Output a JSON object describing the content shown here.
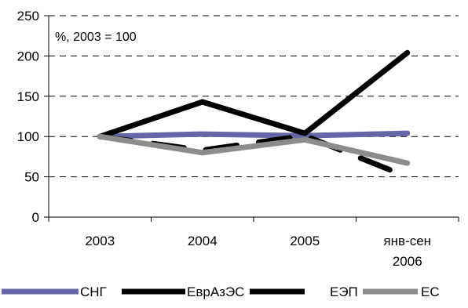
{
  "chart_data": {
    "type": "line",
    "categories": [
      "2003",
      "2004",
      "2005",
      "янв-сен|2006"
    ],
    "annotation": "%, 2003 = 100",
    "ylim": [
      0,
      250
    ],
    "yticks": [
      0,
      50,
      100,
      150,
      200,
      250
    ],
    "grid": true,
    "legend_position": "bottom",
    "series": [
      {
        "name": "СНГ",
        "values": [
          100,
          103,
          101,
          104
        ],
        "color": "#6666a6",
        "dash": "solid"
      },
      {
        "name": "ЕврАзЭС",
        "values": [
          100,
          143,
          104,
          204
        ],
        "color": "#000000",
        "dash": "solid"
      },
      {
        "name": "ЕЭП",
        "values": [
          100,
          83,
          101,
          50
        ],
        "color": "#000000",
        "dash": "long-dash"
      },
      {
        "name": "ЕС",
        "values": [
          100,
          80,
          96,
          67
        ],
        "color": "#8c8c8c",
        "dash": "solid"
      }
    ]
  }
}
